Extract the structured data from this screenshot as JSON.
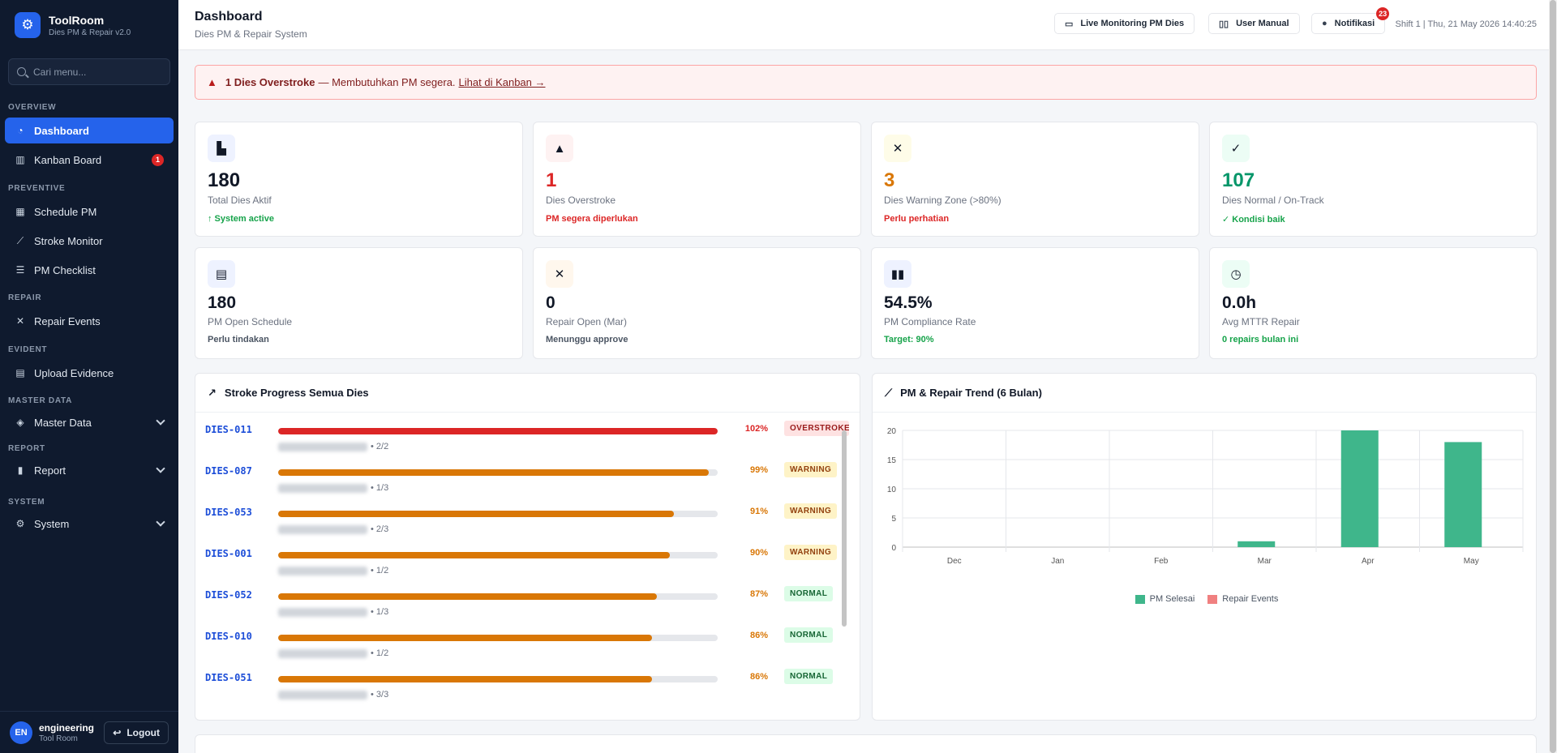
{
  "brand": {
    "title": "ToolRoom",
    "subtitle": "Dies PM & Repair v2.0"
  },
  "search": {
    "placeholder": "Cari menu..."
  },
  "sidebar": {
    "sections": {
      "overview": "OVERVIEW",
      "preventive": "PREVENTIVE",
      "repair": "REPAIR",
      "evident": "EVIDENT",
      "master_data": "MASTER DATA",
      "report": "REPORT",
      "system": "SYSTEM"
    },
    "items": {
      "dashboard": "Dashboard",
      "kanban": "Kanban Board",
      "kanban_badge": "1",
      "schedule_pm": "Schedule PM",
      "stroke_monitor": "Stroke Monitor",
      "pm_checklist": "PM Checklist",
      "repair_events": "Repair Events",
      "upload_evidence": "Upload Evidence",
      "master_data": "Master Data",
      "report": "Report",
      "system": "System"
    }
  },
  "user": {
    "initials": "EN",
    "name": "engineering",
    "role": "Tool Room",
    "logout": "Logout"
  },
  "header": {
    "title": "Dashboard",
    "subtitle": "Dies PM & Repair System",
    "live_btn": "Live Monitoring PM Dies",
    "manual_btn": "User Manual",
    "notif_btn": "Notifikasi",
    "notif_count": "23",
    "shift": "Shift 1 | Thu, 21 May 2026 14:40:25"
  },
  "alert": {
    "bold": "1 Dies Overstroke",
    "message": "— Membutuhkan PM segera.",
    "link": "Lihat di Kanban →"
  },
  "stats_row1": [
    {
      "icon": "factory-icon",
      "value": "180",
      "label": "Total Dies Aktif",
      "note": "↑ System active",
      "value_color": "#111827",
      "note_color": "#16a34a",
      "icon_bg": "#eef2ff"
    },
    {
      "icon": "warning-icon",
      "value": "1",
      "label": "Dies Overstroke",
      "note": "PM segera diperlukan",
      "value_color": "#dc2626",
      "note_color": "#dc2626",
      "icon_bg": "#fef2f2"
    },
    {
      "icon": "tools-icon",
      "value": "3",
      "label": "Dies Warning Zone (>80%)",
      "note": "Perlu perhatian",
      "value_color": "#d97706",
      "note_color": "#dc2626",
      "icon_bg": "#fefce8"
    },
    {
      "icon": "check-circle-icon",
      "value": "107",
      "label": "Dies Normal / On-Track",
      "note": "✓ Kondisi baik",
      "value_color": "#059669",
      "note_color": "#16a34a",
      "icon_bg": "#ecfdf5"
    }
  ],
  "stats_row2": [
    {
      "icon": "clipboard-icon",
      "value": "180",
      "label": "PM Open Schedule",
      "note": "Perlu tindakan",
      "value_color": "#111827",
      "note_color": "#4b5563",
      "icon_bg": "#eef2ff"
    },
    {
      "icon": "tools-icon",
      "value": "0",
      "label": "Repair Open (Mar)",
      "note": "Menunggu approve",
      "value_color": "#111827",
      "note_color": "#4b5563",
      "icon_bg": "#fff7ed"
    },
    {
      "icon": "bar-chart-icon",
      "value": "54.5%",
      "label": "PM Compliance Rate",
      "note": "Target: 90%",
      "value_color": "#111827",
      "note_color": "#16a34a",
      "icon_bg": "#eef2ff"
    },
    {
      "icon": "stopwatch-icon",
      "value": "0.0h",
      "label": "Avg MTTR Repair",
      "note": "0 repairs bulan ini",
      "value_color": "#111827",
      "note_color": "#16a34a",
      "icon_bg": "#ecfdf5"
    }
  ],
  "stroke_panel": {
    "title": "Stroke Progress Semua Dies",
    "rows": [
      {
        "id": "DIES-011",
        "pct": 102,
        "pct_label": "102%",
        "meta": "• 2/2",
        "status": "OVERSTROKE",
        "level": "over"
      },
      {
        "id": "DIES-087",
        "pct": 99,
        "pct_label": "99%",
        "meta": "• 1/3",
        "status": "WARNING",
        "level": "warn"
      },
      {
        "id": "DIES-053",
        "pct": 91,
        "pct_label": "91%",
        "meta": "• 2/3",
        "status": "WARNING",
        "level": "warn"
      },
      {
        "id": "DIES-001",
        "pct": 90,
        "pct_label": "90%",
        "meta": "• 1/2",
        "status": "WARNING",
        "level": "warn"
      },
      {
        "id": "DIES-052",
        "pct": 87,
        "pct_label": "87%",
        "meta": "• 1/3",
        "status": "NORMAL",
        "level": "norm"
      },
      {
        "id": "DIES-010",
        "pct": 86,
        "pct_label": "86%",
        "meta": "• 1/2",
        "status": "NORMAL",
        "level": "norm"
      },
      {
        "id": "DIES-051",
        "pct": 86,
        "pct_label": "86%",
        "meta": "• 3/3",
        "status": "NORMAL",
        "level": "norm"
      }
    ]
  },
  "colors": {
    "over": "#dc2626",
    "warn": "#d97706",
    "norm": "#d97706",
    "accent": "#2563eb",
    "pm_series": "#3fb68b",
    "repair_series": "#f08080"
  },
  "trend_panel": {
    "title": "PM & Repair Trend (6 Bulan)"
  },
  "chart_data": {
    "type": "bar",
    "title": "PM & Repair Trend (6 Bulan)",
    "categories": [
      "Dec",
      "Jan",
      "Feb",
      "Mar",
      "Apr",
      "May"
    ],
    "series": [
      {
        "name": "PM Selesai",
        "values": [
          0,
          0,
          0,
          1,
          20,
          18
        ]
      },
      {
        "name": "Repair Events",
        "values": [
          0,
          0,
          0,
          0,
          0,
          0
        ]
      }
    ],
    "yticks": [
      "0",
      "5",
      "10",
      "15",
      "20"
    ],
    "ylim": [
      0,
      20
    ],
    "grid": true,
    "legend": "bottom"
  }
}
